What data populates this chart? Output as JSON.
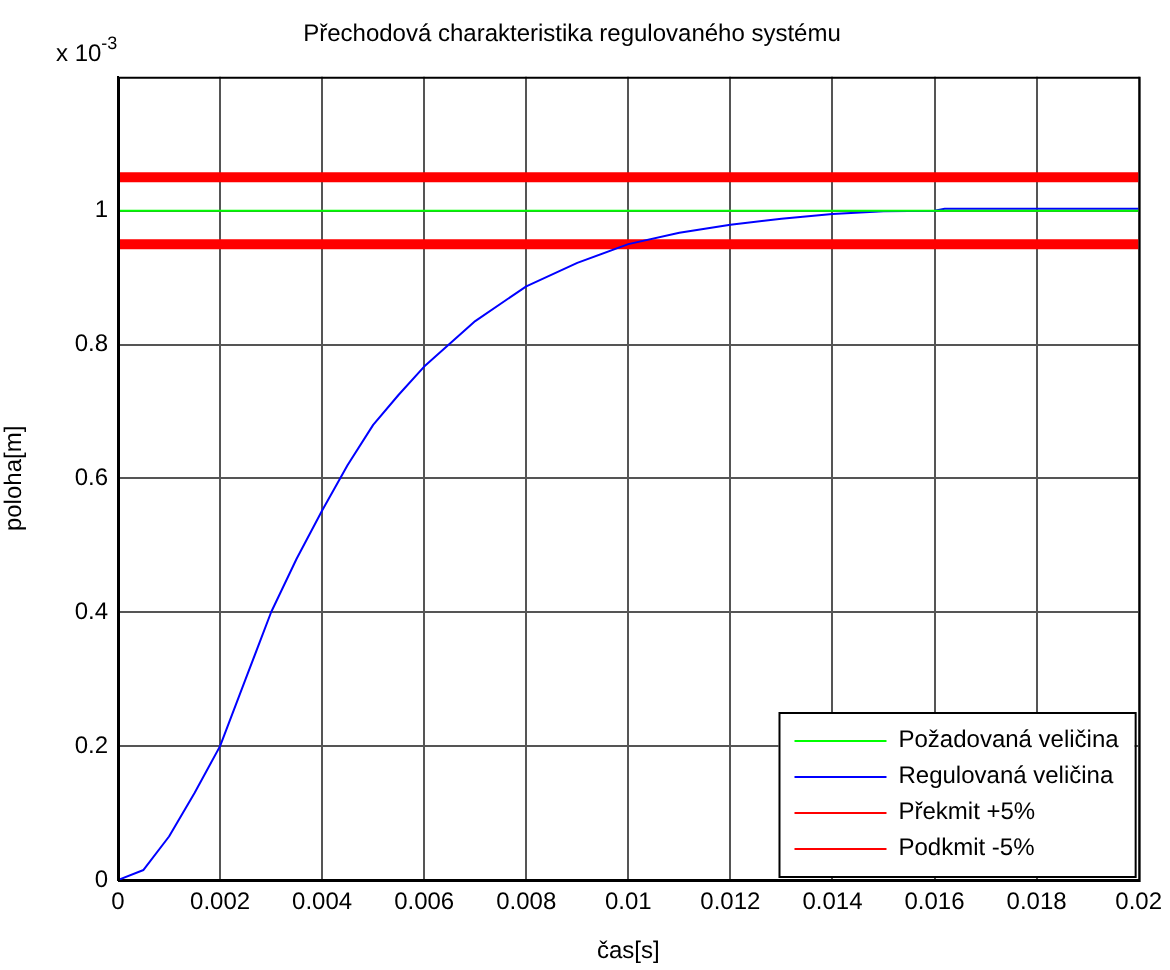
{
  "chart_data": {
    "type": "line",
    "title": "Přechodová charakteristika regulovaného systému",
    "xlabel": "čas[s]",
    "ylabel": "poloha[m]",
    "annotations": [
      "x 10$^{-3}$"
    ],
    "xlim": [
      0,
      0.02
    ],
    "xticks": [
      0,
      0.002,
      0.004,
      0.006,
      0.008,
      0.01,
      0.012,
      0.014,
      0.016,
      0.018,
      0.02
    ],
    "ylim": [
      0,
      1.2
    ],
    "yticks": [
      0,
      0.2,
      0.4,
      0.6,
      0.8,
      1
    ],
    "grid": true,
    "legend": "bottom right",
    "marker": "none",
    "line_style": "solid",
    "series": [
      {
        "name": "Požadovaná veličina",
        "color": "#00ff00",
        "x": [
          0,
          0.02
        ],
        "values": [
          1,
          1
        ]
      },
      {
        "name": "Regulovaná veličina",
        "color": "#0000ff",
        "x": [
          0,
          0.0005,
          0.001,
          0.0015,
          0.002,
          0.0025,
          0.003,
          0.0035,
          0.004,
          0.0045,
          0.005,
          0.0055,
          0.006,
          0.007,
          0.008,
          0.009,
          0.01,
          0.011,
          0.012,
          0.013,
          0.014,
          0.015,
          0.016,
          0.0162,
          0.02
        ],
        "values": [
          0,
          0.015,
          0.065,
          0.13,
          0.2,
          0.3,
          0.4,
          0.48,
          0.552,
          0.62,
          0.68,
          0.725,
          0.767,
          0.835,
          0.887,
          0.922,
          0.95,
          0.967,
          0.979,
          0.988,
          0.995,
          0.999,
          1.0,
          1.003,
          1.003
        ]
      },
      {
        "name": "Překmit +5%",
        "color": "#ff0000",
        "x": [
          0,
          0.02
        ],
        "values": [
          1.05,
          1.05
        ]
      },
      {
        "name": "Podkmit -5%",
        "color": "#ff0000",
        "x": [
          0,
          0.02
        ],
        "values": [
          0.95,
          0.95
        ]
      }
    ]
  }
}
